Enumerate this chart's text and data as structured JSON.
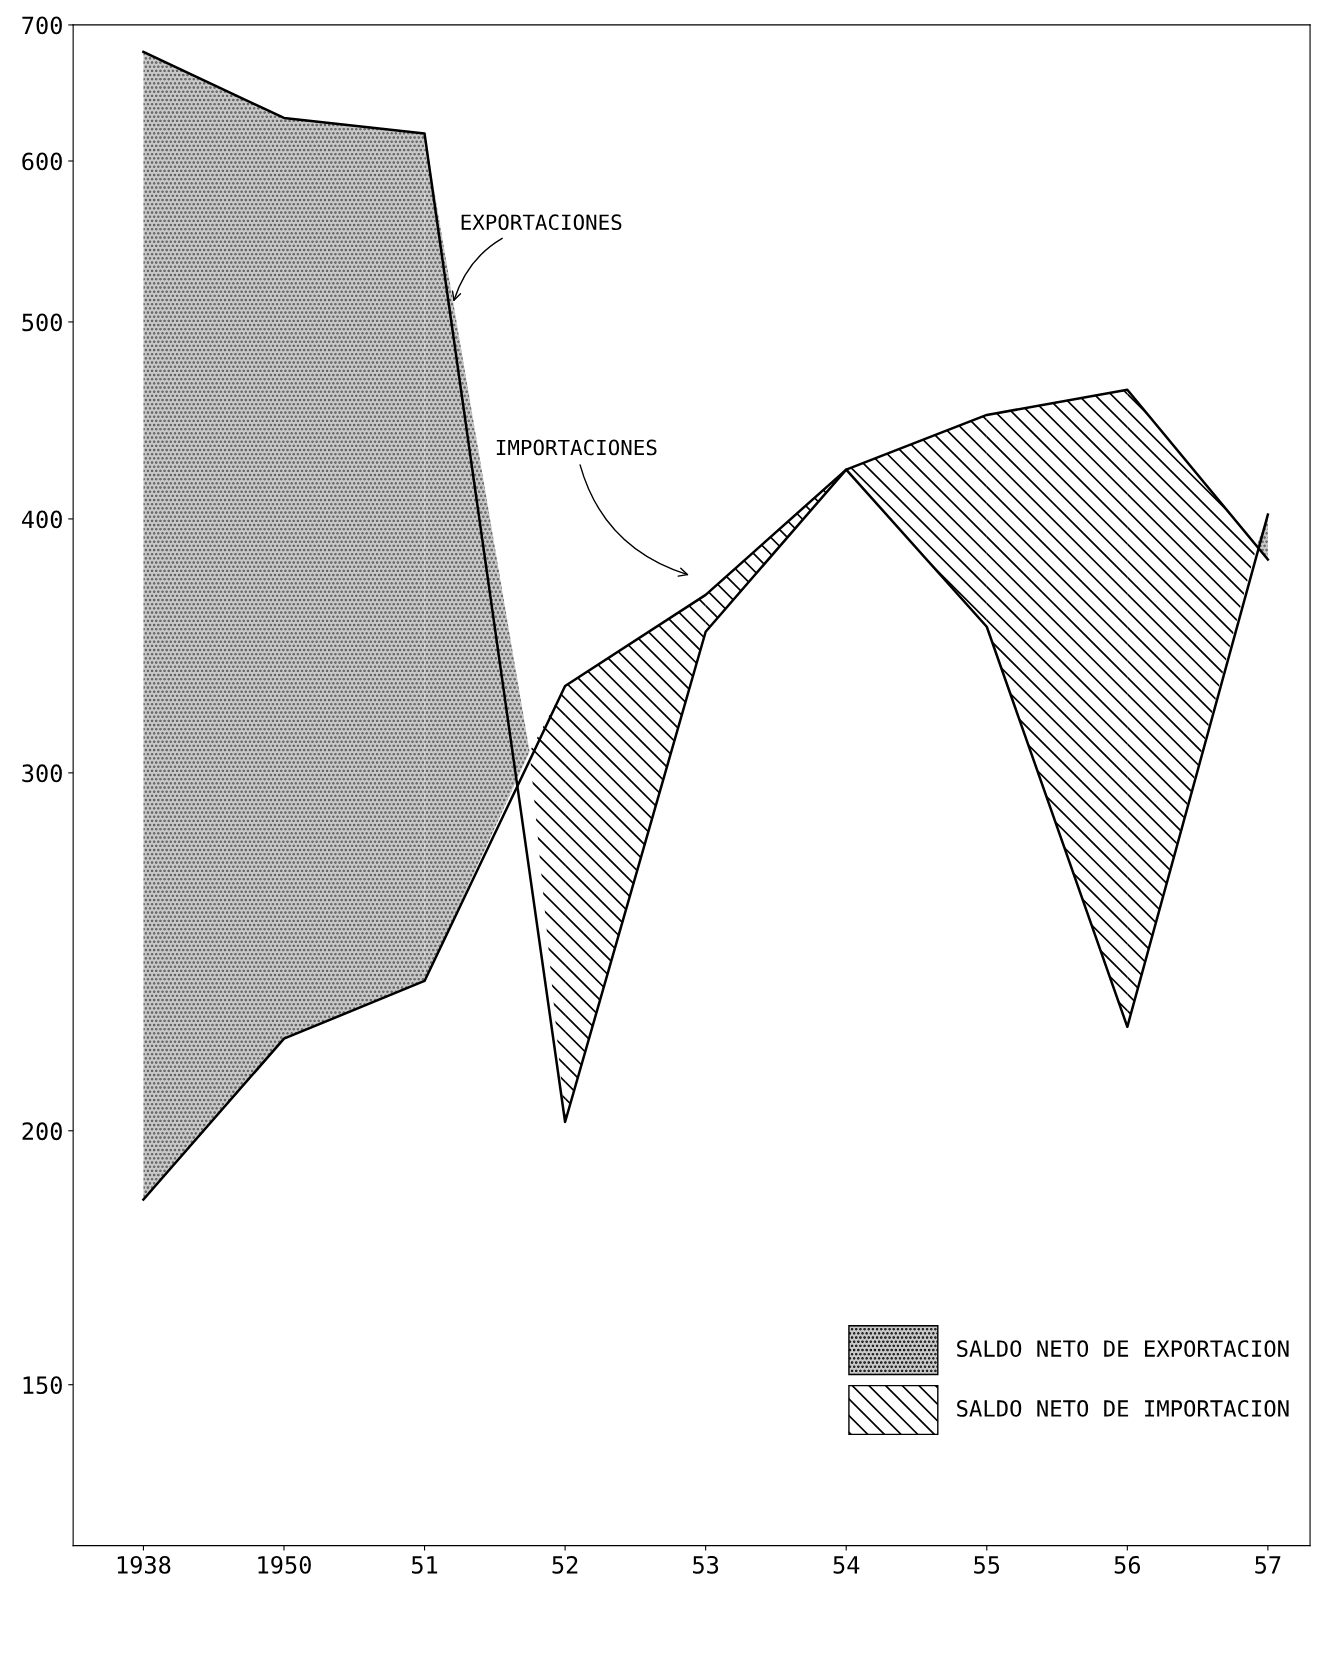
{
  "chart_data": {
    "type": "line",
    "categories": [
      "1938",
      "1950",
      "51",
      "52",
      "53",
      "54",
      "55",
      "56",
      "57"
    ],
    "series": [
      {
        "color": "#000000",
        "values": [
          679,
          630,
          619,
          202,
          352,
          423,
          354,
          225,
          402
        ]
      },
      {
        "color": "#000000",
        "values": [
          185,
          222,
          237,
          331,
          367,
          423,
          450,
          463,
          382
        ]
      }
    ],
    "log": "y",
    "ylim": [
      125,
      700
    ],
    "yticks": [
      150,
      200,
      300,
      400,
      500,
      600,
      700
    ],
    "annotations": [
      "EXPORTACIONES",
      "IMPORTACIONES",
      "SALDO NETO DE EXPORTACION",
      "SALDO NETO DE IMPORTACION"
    ],
    "grid": false,
    "marker": "none",
    "line_style": "solid"
  }
}
